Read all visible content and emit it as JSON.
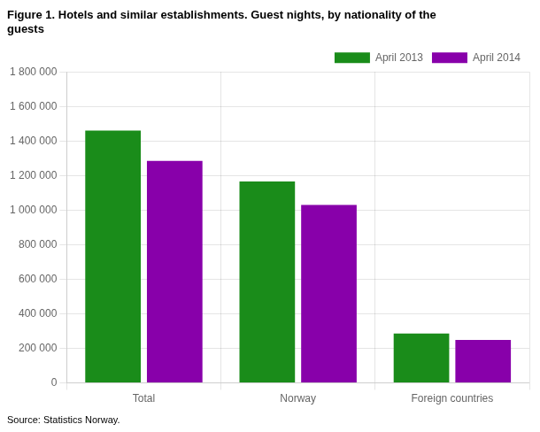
{
  "chart_data": {
    "type": "bar",
    "title": [
      "Figure 1. Hotels and similar establishments. Guest nights, by nationality of the",
      "guests"
    ],
    "source": "Source: Statistics Norway.",
    "categories": [
      "Total",
      "Norway",
      "Foreign countries"
    ],
    "series": [
      {
        "name": "April 2013",
        "color": "#1a8c1a",
        "values": [
          1460000,
          1165000,
          285000
        ]
      },
      {
        "name": "April 2014",
        "color": "#8800aa",
        "values": [
          1285000,
          1030000,
          248000
        ]
      }
    ],
    "ylim": [
      0,
      1800000
    ],
    "yticks": [
      0,
      {
        "value": 200000,
        "label": "200 000"
      },
      {
        "value": 400000,
        "label": "400 000"
      },
      {
        "value": 600000,
        "label": "600 000"
      },
      {
        "value": 800000,
        "label": "800 000"
      },
      {
        "value": 1000000,
        "label": "1 000 000"
      },
      {
        "value": 1200000,
        "label": "1 200 000"
      },
      {
        "value": 1400000,
        "label": "1 400 000"
      },
      {
        "value": 1600000,
        "label": "1 600 000"
      },
      {
        "value": 1800000,
        "label": "1 800 000"
      }
    ],
    "grid": true,
    "legend": "upper right"
  }
}
